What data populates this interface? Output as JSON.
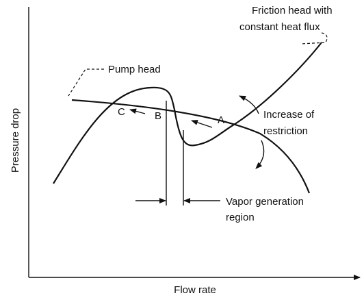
{
  "axes": {
    "x_label": "Flow rate",
    "y_label": "Pressure drop"
  },
  "curves": {
    "friction": {
      "label": [
        "Friction head with",
        "constant heat flux"
      ]
    },
    "pump": {
      "label": "Pump head"
    }
  },
  "points": {
    "a": "A",
    "b": "B",
    "c": "C"
  },
  "annotations": {
    "restriction": [
      "Increase of",
      "restriction"
    ],
    "vapor": [
      "Vapor generation",
      "region"
    ]
  }
}
